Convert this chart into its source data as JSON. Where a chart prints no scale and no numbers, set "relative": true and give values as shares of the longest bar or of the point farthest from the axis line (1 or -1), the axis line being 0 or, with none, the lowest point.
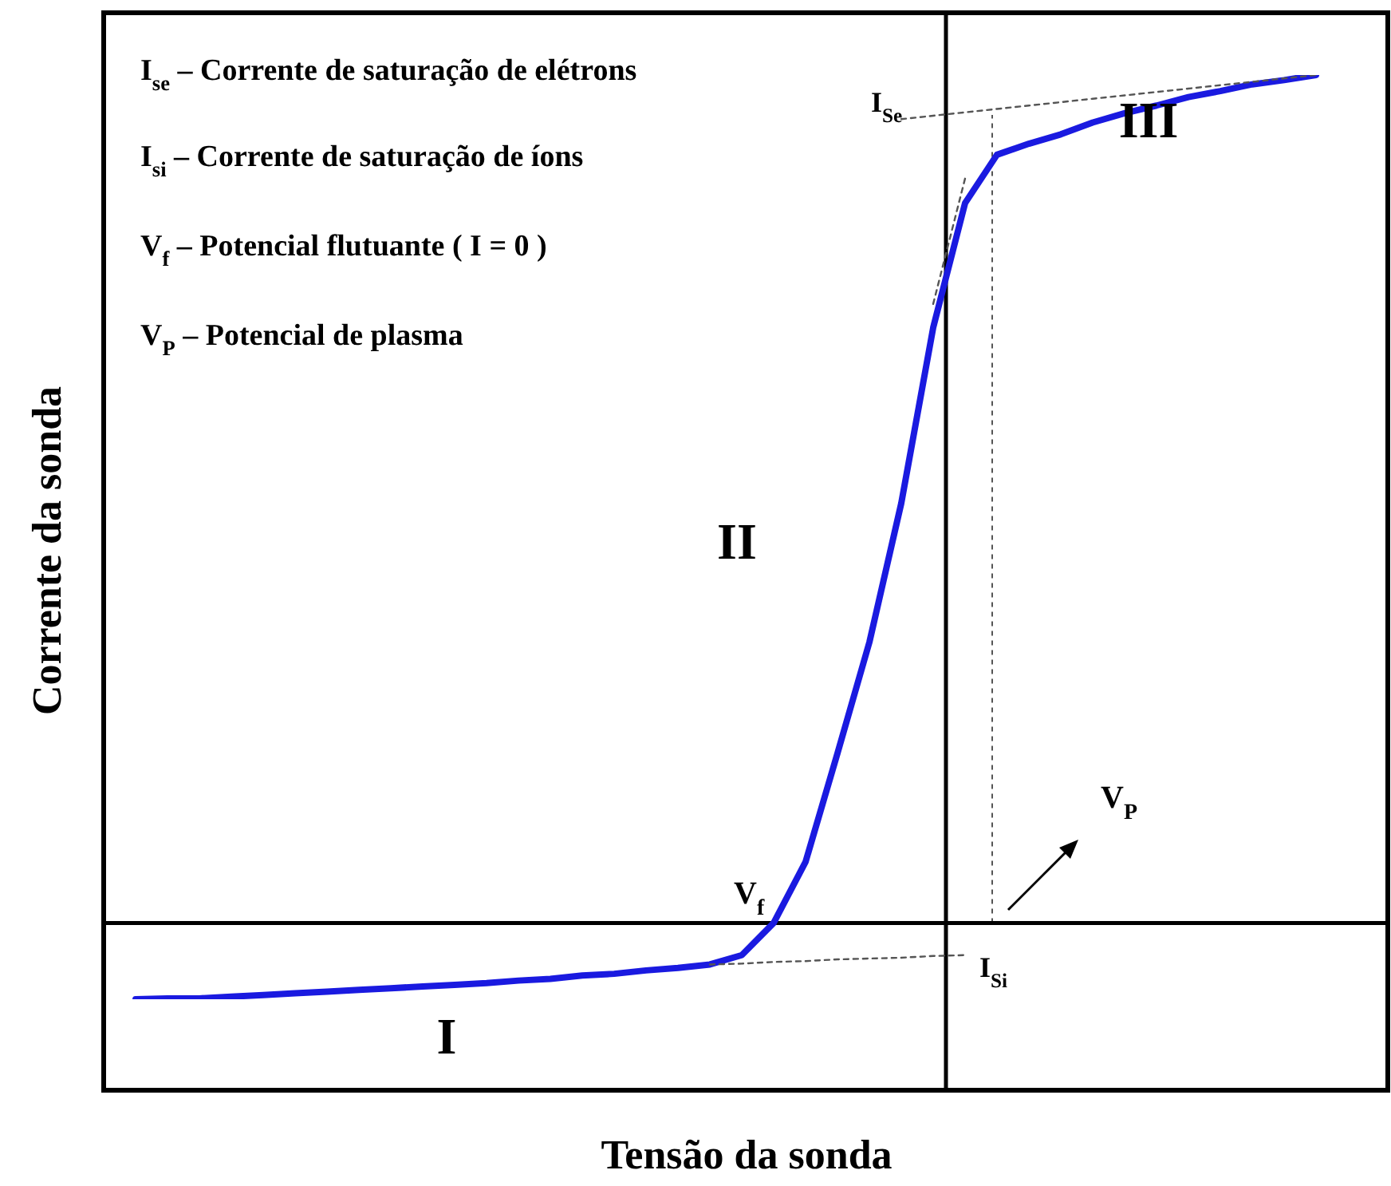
{
  "chart_data": {
    "type": "line",
    "relative": true,
    "xlabel": "Tensão da sonda",
    "ylabel": "Corrente da sonda",
    "categories": [
      null,
      null,
      null,
      null,
      null,
      null,
      null,
      null,
      null,
      null,
      null,
      null,
      null,
      null,
      null,
      null,
      null,
      null,
      null,
      null,
      null,
      null,
      null,
      null,
      null,
      null,
      null,
      null,
      null,
      null,
      null,
      null,
      null,
      null,
      null,
      null,
      null,
      null
    ],
    "series": [
      {
        "color": "#1a1ae0",
        "line_style": "solid",
        "values": [
          -0.09,
          -0.089,
          -0.089,
          -0.087,
          -0.085,
          -0.083,
          -0.081,
          -0.079,
          -0.077,
          -0.075,
          -0.073,
          -0.071,
          -0.068,
          -0.066,
          -0.062,
          -0.06,
          -0.056,
          -0.053,
          -0.049,
          -0.038,
          0.0,
          0.072,
          0.2,
          0.331,
          0.495,
          0.702,
          0.849,
          0.906,
          0.919,
          0.93,
          0.944,
          0.955,
          0.964,
          0.974,
          0.981,
          0.989,
          0.994,
          1.0
        ]
      },
      {
        "color": "#555555",
        "line_style": "dashed",
        "values": [
          null,
          null,
          null,
          null,
          null,
          null,
          null,
          null,
          null,
          null,
          null,
          null,
          null,
          null,
          null,
          null,
          null,
          null,
          -0.049,
          -0.048,
          -0.046,
          -0.045,
          -0.043,
          -0.042,
          -0.041,
          -0.039,
          -0.038,
          null,
          null,
          null,
          null,
          null,
          null,
          null,
          null,
          null,
          null,
          null
        ]
      },
      {
        "color": "#555555",
        "line_style": "dashed",
        "values": [
          null,
          null,
          null,
          null,
          null,
          null,
          null,
          null,
          null,
          null,
          null,
          null,
          null,
          null,
          null,
          null,
          null,
          null,
          null,
          null,
          null,
          null,
          null,
          null,
          0.948,
          0.952,
          0.956,
          0.96,
          0.964,
          0.968,
          0.972,
          0.976,
          0.98,
          0.984,
          0.988,
          0.992,
          0.996,
          1.0
        ]
      },
      {
        "color": "#555555",
        "line_style": "dashed",
        "values": [
          null,
          null,
          null,
          null,
          null,
          null,
          null,
          null,
          null,
          null,
          null,
          null,
          null,
          null,
          null,
          null,
          null,
          null,
          null,
          null,
          null,
          null,
          null,
          null,
          null,
          0.73,
          0.878,
          null,
          null,
          null,
          null,
          null,
          null,
          null,
          null,
          null,
          null,
          null
        ]
      }
    ],
    "ref_lines": [
      {
        "axis": "y",
        "value": 0,
        "color": "#000000",
        "line_style": "solid"
      }
    ],
    "annotations": [
      "I$_{se}$ – Corrente de saturação de elétrons",
      "I$_{si}$ – Corrente de saturação de íons",
      "V$_{f}$ – Potencial flutuante ( I = 0 )",
      "V$_{P}$ – Potencial de plasma",
      "I",
      "II",
      "III",
      "I$_{Se}$",
      "I$_{Si}$",
      "V$_{f}$",
      "V$_{P}$"
    ],
    "marker": "none",
    "legend": false
  }
}
